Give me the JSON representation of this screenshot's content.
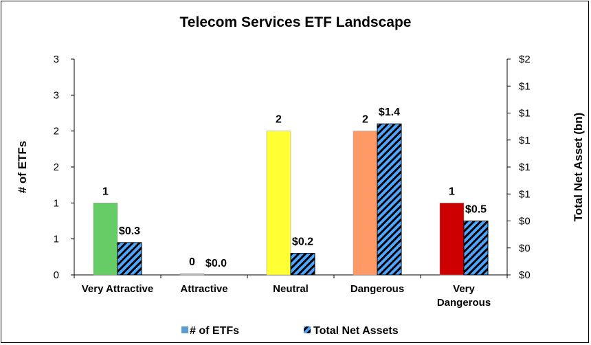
{
  "chart_data": {
    "type": "bar",
    "title": "Telecom Services ETF Landscape",
    "ylabel": "# of ETFs",
    "y2label": "Total Net Asset (bn)",
    "categories": [
      [
        "Very Attractive"
      ],
      [
        "Attractive"
      ],
      [
        "Neutral"
      ],
      [
        "Dangerous"
      ],
      [
        "Very",
        "Dangerous"
      ]
    ],
    "y_ticks": [
      "0",
      "1",
      "1",
      "2",
      "2",
      "3",
      "3"
    ],
    "y2_ticks": [
      "$0",
      "$0",
      "$0",
      "$1",
      "$1",
      "$1",
      "$1",
      "$1",
      "$2"
    ],
    "ylim": [
      0,
      3
    ],
    "y2lim": [
      0,
      2
    ],
    "series": [
      {
        "name": "# of ETFs",
        "values": [
          1,
          0,
          2,
          2,
          1
        ],
        "labels": [
          "1",
          "0",
          "2",
          "2",
          "1"
        ],
        "colors": [
          "#66cc66",
          "#c0c0c0",
          "#ffff33",
          "#ff9966",
          "#cc0000"
        ]
      },
      {
        "name": "Total Net Assets",
        "values": [
          0.3,
          0.0,
          0.2,
          1.4,
          0.5
        ],
        "labels": [
          "$0.3",
          "$0.0",
          "$0.2",
          "$1.4",
          "$0.5"
        ],
        "pattern": "diagonal-stripes",
        "colors": [
          "#4da6ff",
          "#000000"
        ]
      }
    ],
    "legend": "bottom",
    "grid": false
  }
}
